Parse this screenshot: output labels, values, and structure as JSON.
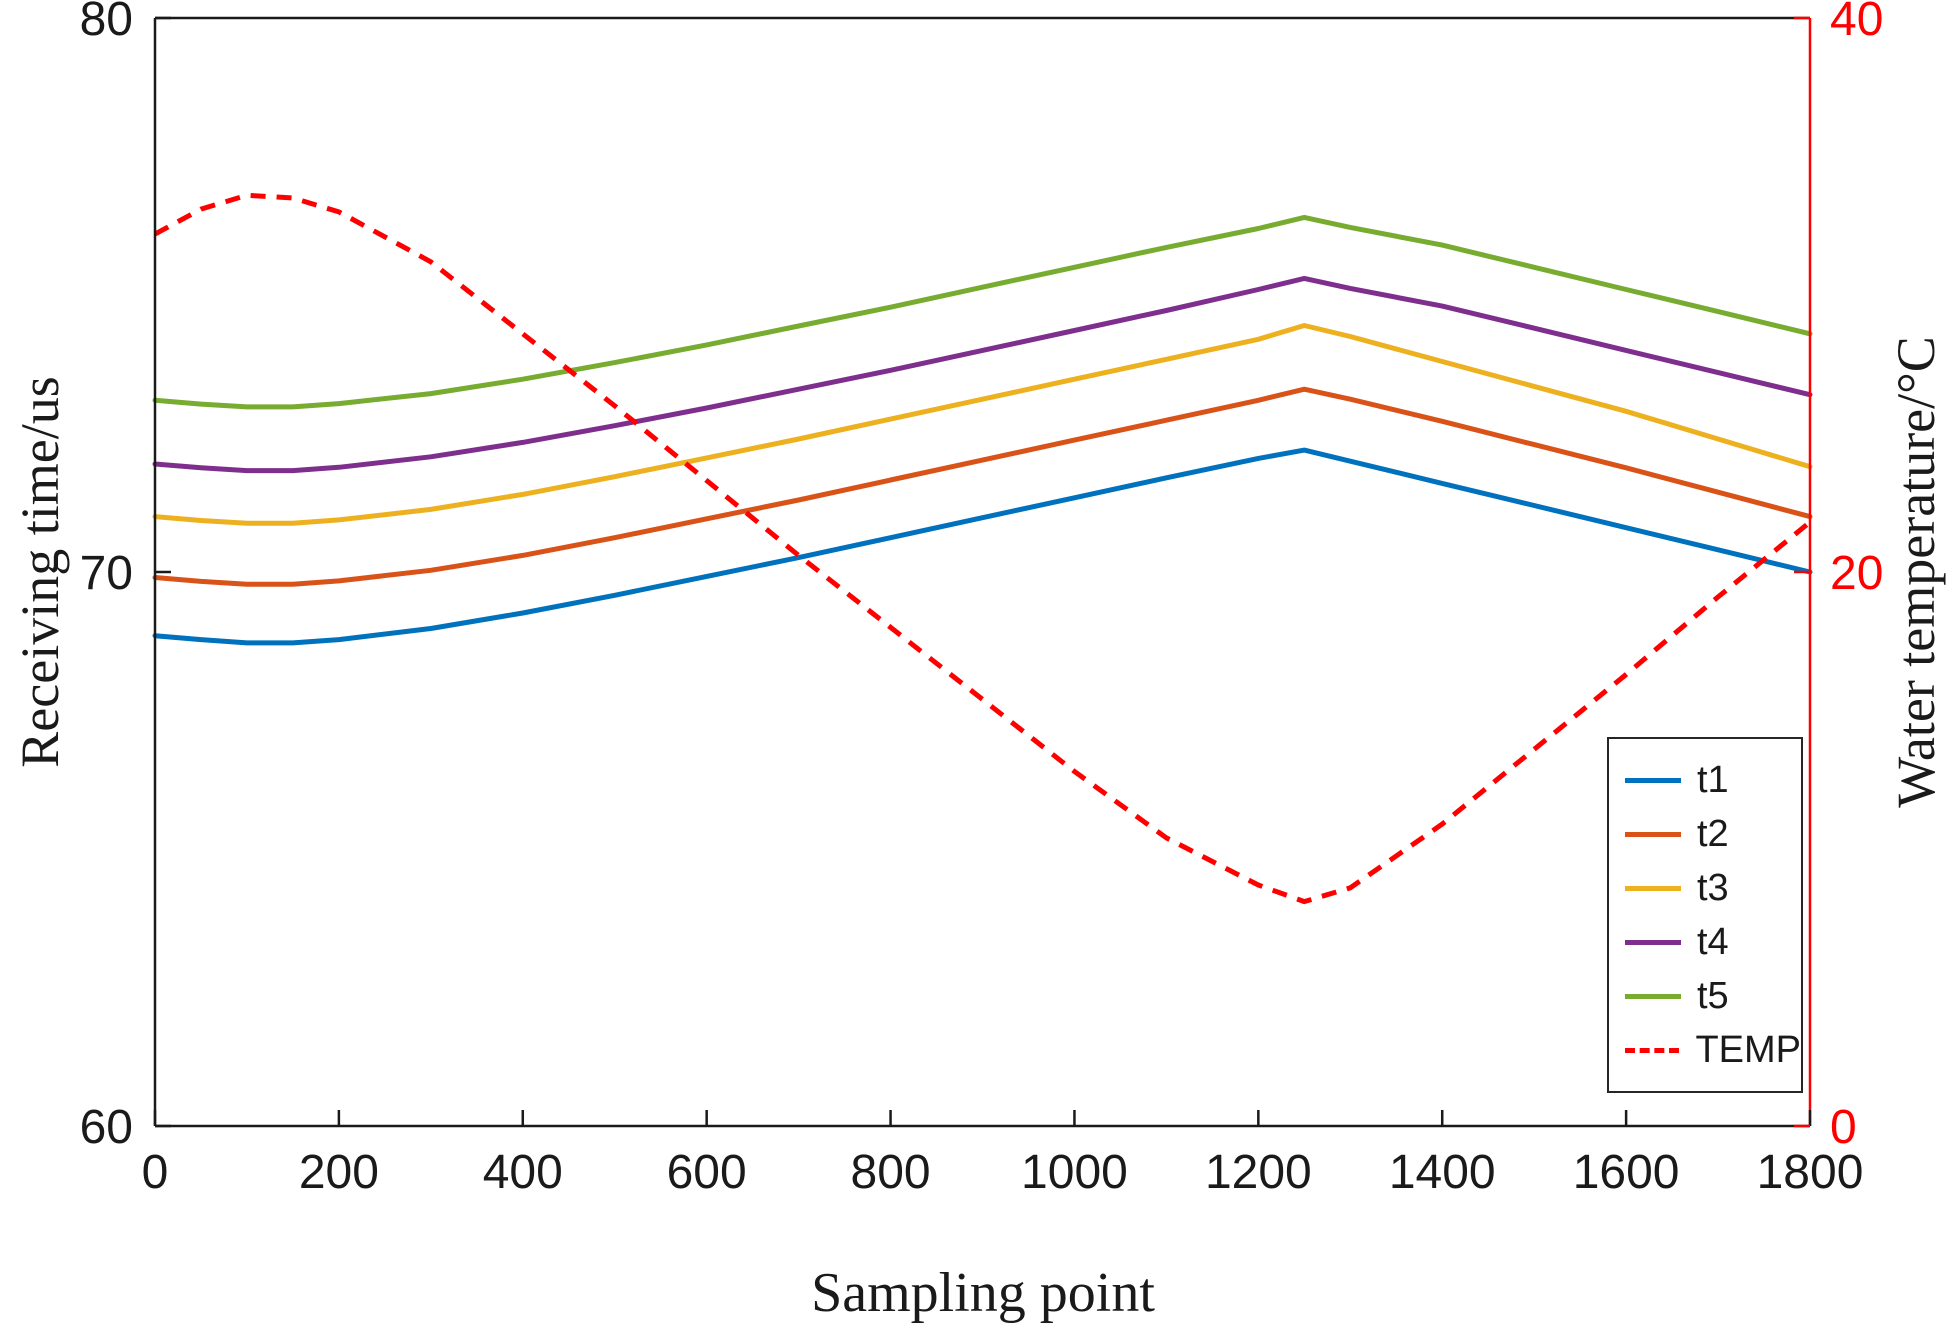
{
  "figure": {
    "background": "#ffffff"
  },
  "chart_data": {
    "type": "line",
    "title": "",
    "xlabel": "Sampling point",
    "ylabel_left": "Receiving time/us",
    "ylabel_right": "Water temperature/°C",
    "xlim": [
      0,
      1800
    ],
    "x_ticks": [
      0,
      200,
      400,
      600,
      800,
      1000,
      1200,
      1400,
      1600,
      1800
    ],
    "ylim_left": [
      60,
      80
    ],
    "y_ticks_left": [
      60,
      70,
      80
    ],
    "ylim_right": [
      0,
      40
    ],
    "y_ticks_right": [
      0,
      20,
      40
    ],
    "axis_color_left": "#1a1a1a",
    "axis_color_right": "#ff0000",
    "grid": false,
    "legend_position": "inside-lower-right",
    "x": [
      0,
      50,
      100,
      150,
      200,
      300,
      400,
      500,
      600,
      700,
      800,
      900,
      1000,
      1100,
      1200,
      1250,
      1300,
      1400,
      1500,
      1600,
      1700,
      1800
    ],
    "series": [
      {
        "name": "t1",
        "axis": "left",
        "style": "solid",
        "color": "#0072BD",
        "y": [
          68.85,
          68.78,
          68.72,
          68.72,
          68.78,
          68.98,
          69.26,
          69.58,
          69.92,
          70.26,
          70.62,
          70.98,
          71.34,
          71.7,
          72.05,
          72.2,
          72.0,
          71.6,
          71.2,
          70.8,
          70.4,
          70.0
        ]
      },
      {
        "name": "t2",
        "axis": "left",
        "style": "solid",
        "color": "#D95319",
        "y": [
          69.9,
          69.83,
          69.78,
          69.78,
          69.84,
          70.03,
          70.3,
          70.62,
          70.96,
          71.3,
          71.66,
          72.02,
          72.38,
          72.74,
          73.1,
          73.3,
          73.12,
          72.72,
          72.3,
          71.88,
          71.44,
          71.0
        ]
      },
      {
        "name": "t3",
        "axis": "left",
        "style": "solid",
        "color": "#EDB120",
        "y": [
          71.0,
          70.93,
          70.88,
          70.88,
          70.94,
          71.13,
          71.4,
          71.72,
          72.06,
          72.4,
          72.76,
          73.12,
          73.48,
          73.84,
          74.2,
          74.45,
          74.25,
          73.8,
          73.35,
          72.9,
          72.4,
          71.9
        ]
      },
      {
        "name": "t4",
        "axis": "left",
        "style": "solid",
        "color": "#7E2F8E",
        "y": [
          71.95,
          71.88,
          71.83,
          71.83,
          71.89,
          72.08,
          72.34,
          72.64,
          72.96,
          73.3,
          73.64,
          74.0,
          74.36,
          74.72,
          75.1,
          75.3,
          75.12,
          74.8,
          74.4,
          74.0,
          73.6,
          73.2
        ]
      },
      {
        "name": "t5",
        "axis": "left",
        "style": "solid",
        "color": "#77AC30",
        "y": [
          73.1,
          73.03,
          72.98,
          72.98,
          73.04,
          73.22,
          73.48,
          73.78,
          74.1,
          74.44,
          74.78,
          75.14,
          75.5,
          75.86,
          76.2,
          76.4,
          76.22,
          75.9,
          75.5,
          75.1,
          74.7,
          74.3
        ]
      },
      {
        "name": "TEMP",
        "axis": "right",
        "style": "dashed",
        "color": "#ff0000",
        "y": [
          32.2,
          33.1,
          33.6,
          33.5,
          33.0,
          31.2,
          28.6,
          26.0,
          23.3,
          20.6,
          18.0,
          15.4,
          12.8,
          10.4,
          8.7,
          8.1,
          8.6,
          10.9,
          13.6,
          16.3,
          19.1,
          21.8
        ]
      }
    ]
  }
}
